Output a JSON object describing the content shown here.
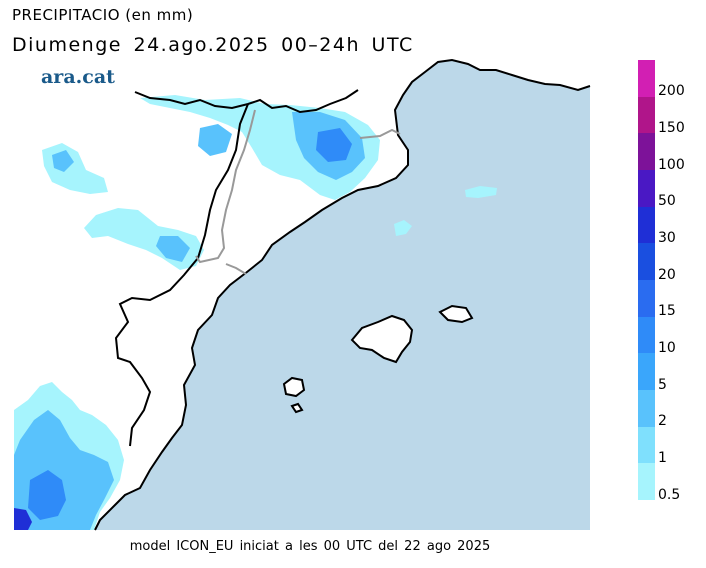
{
  "header": {
    "title": "PRECIPITACIO (en mm)",
    "subtitle": "Diumenge 24.ago.2025 00–24h UTC",
    "logo_text": "ara.cat"
  },
  "footer": {
    "model_info": "model ICON_EU iniciat a les 00 UTC del 22 ago 2025"
  },
  "legend": {
    "levels": [
      {
        "label": "200",
        "color": "#d21fb3"
      },
      {
        "label": "150",
        "color": "#b0158a"
      },
      {
        "label": "100",
        "color": "#7d1299"
      },
      {
        "label": "50",
        "color": "#4a18c4"
      },
      {
        "label": "30",
        "color": "#1f2fd6"
      },
      {
        "label": "20",
        "color": "#1a4fe0"
      },
      {
        "label": "15",
        "color": "#2a6cf0"
      },
      {
        "label": "10",
        "color": "#2f8bf8"
      },
      {
        "label": "5",
        "color": "#3aa6fb"
      },
      {
        "label": "2",
        "color": "#59c2fc"
      },
      {
        "label": "1",
        "color": "#7fe0fd"
      },
      {
        "label": "0.5",
        "color": "#a6f4fd"
      }
    ]
  },
  "map": {
    "sea_color": "#bcd8e9",
    "land_color": "#ffffff",
    "coast_color": "#000000",
    "border_color": "#999999"
  }
}
